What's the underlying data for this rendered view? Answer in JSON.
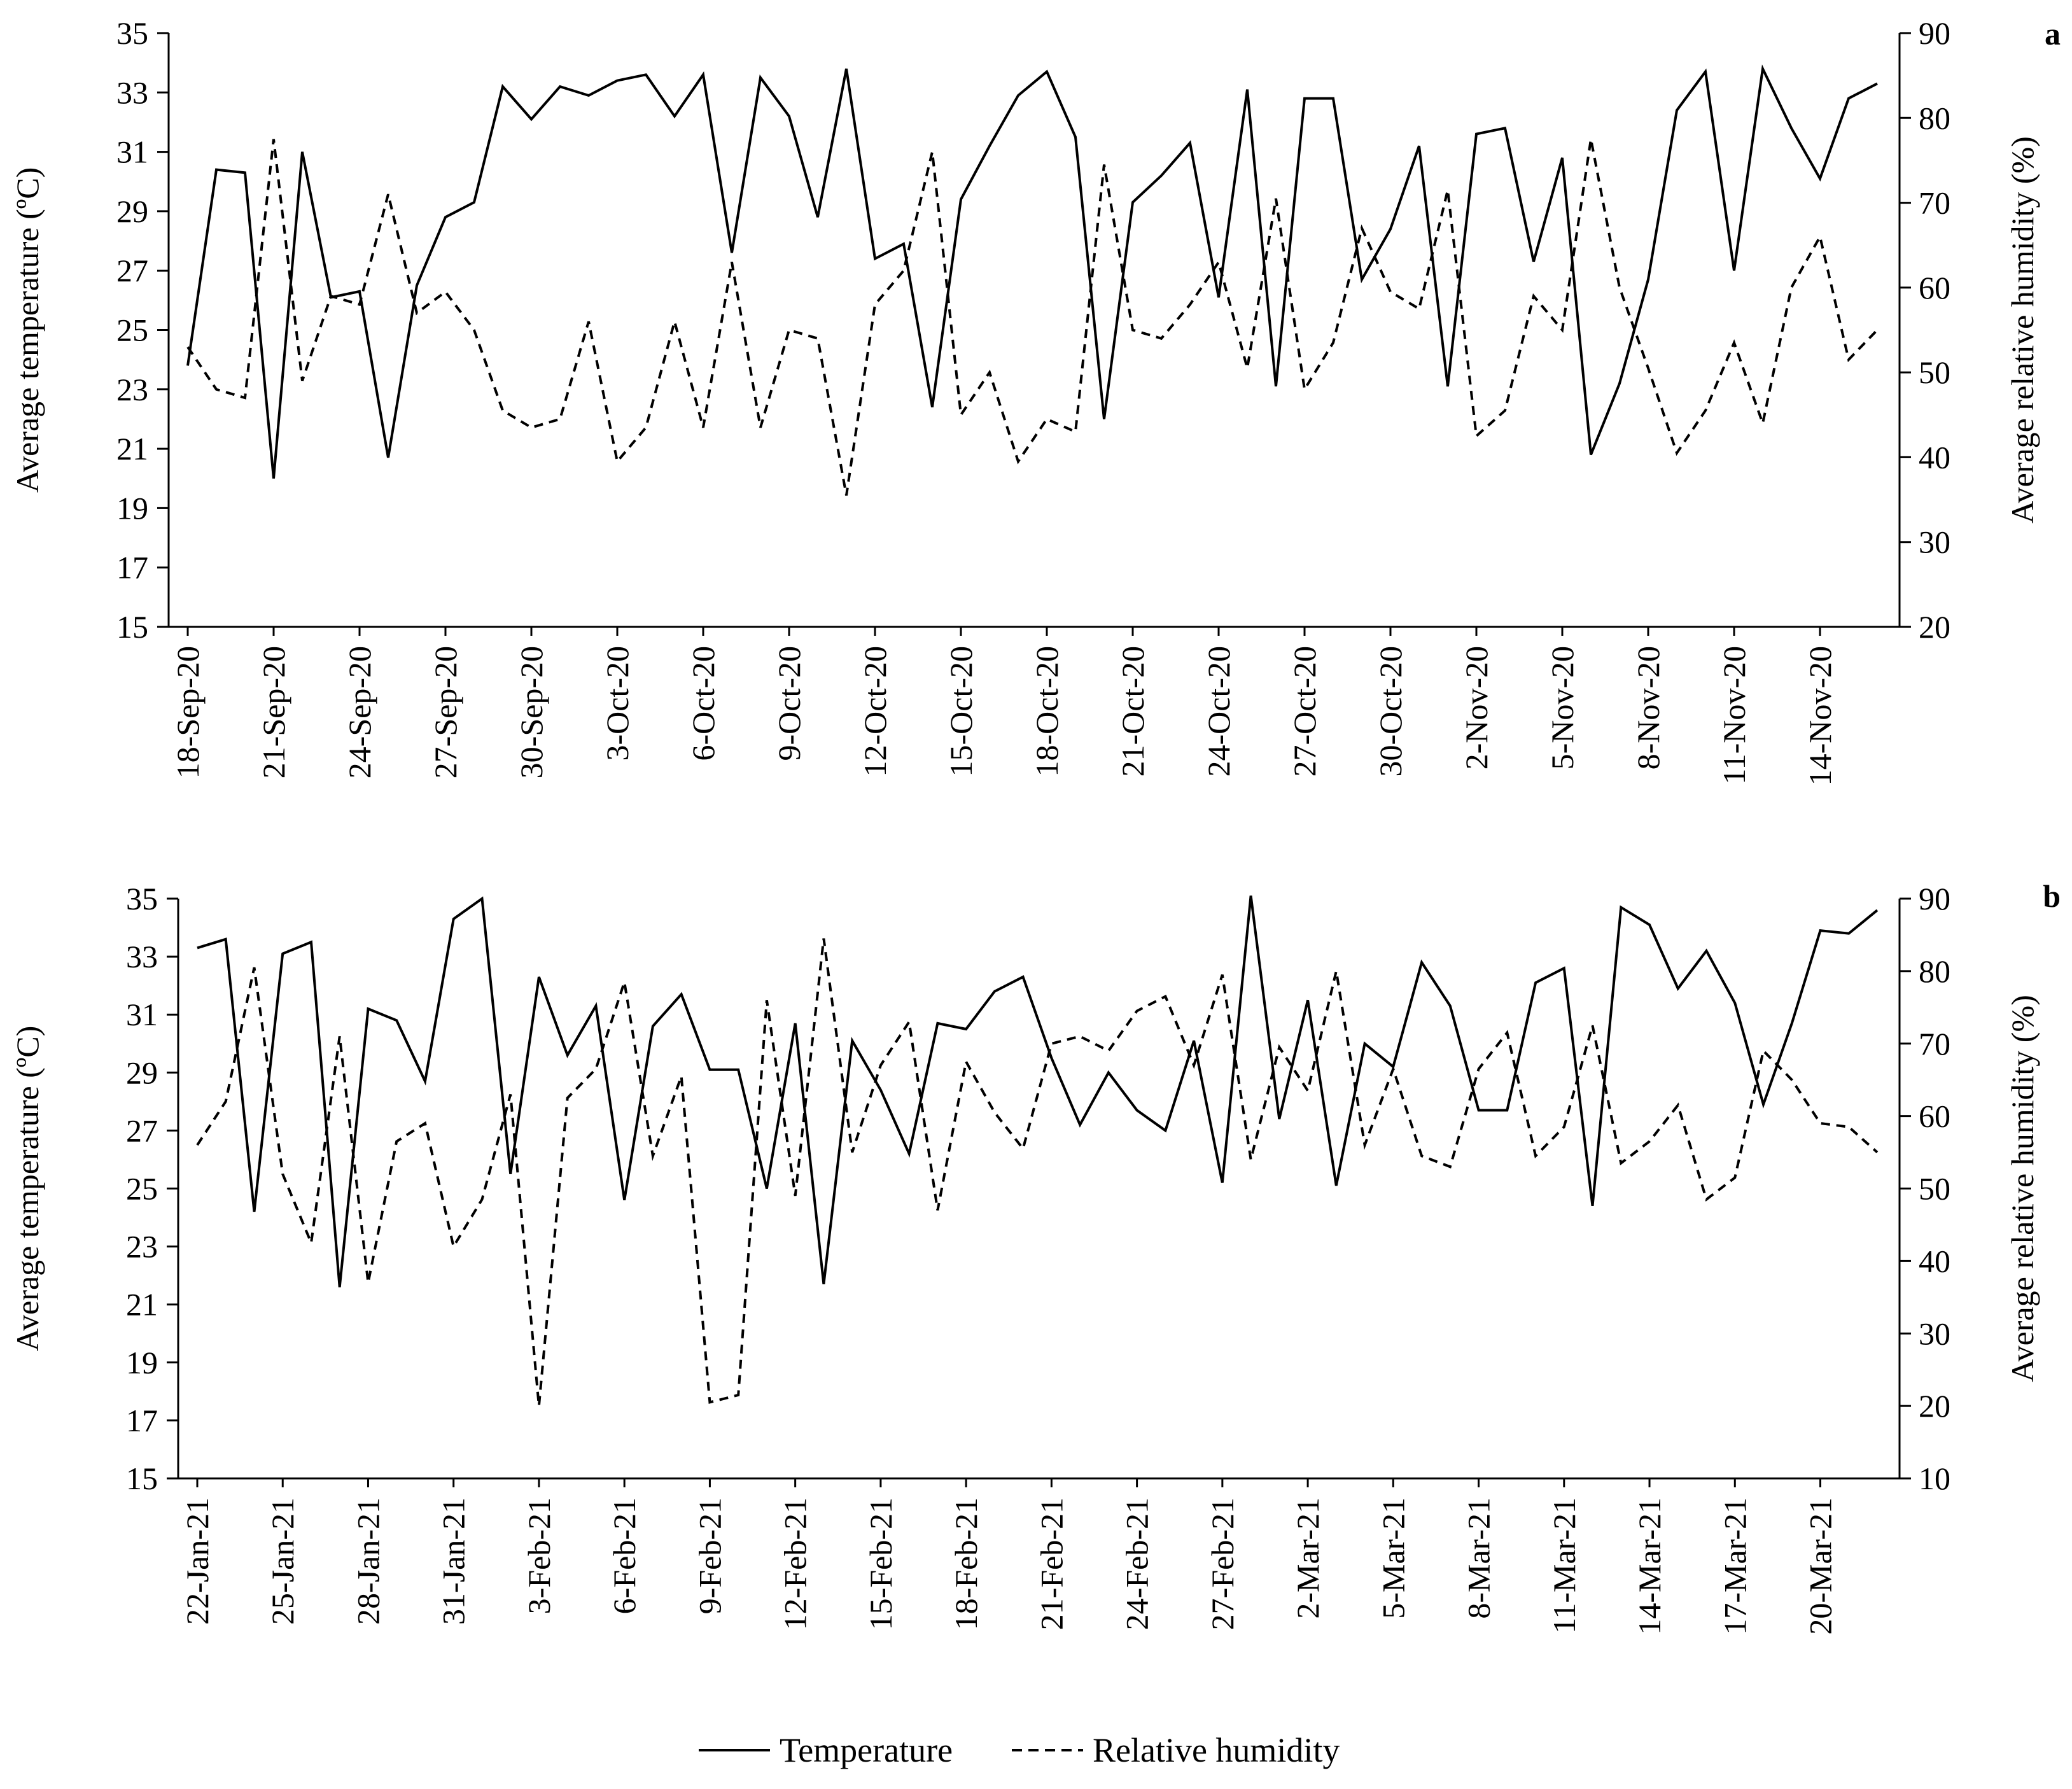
{
  "legend": {
    "temperature_label": "Temperature",
    "humidity_label": "Relative humidity"
  },
  "colors": {
    "line": "#000000",
    "background": "#ffffff"
  },
  "chart_data": [
    {
      "type": "line",
      "panel": "a",
      "ylabel": "Average temperature (ºC)",
      "y2label": "Average relative humidity (%)",
      "ylim": [
        15,
        35
      ],
      "y2lim": [
        20,
        90
      ],
      "yticks": [
        15,
        17,
        19,
        21,
        23,
        25,
        27,
        29,
        31,
        33,
        35
      ],
      "y2ticks": [
        20,
        30,
        40,
        50,
        60,
        70,
        80,
        90
      ],
      "x": [
        "18-Sep-20",
        "19-Sep-20",
        "20-Sep-20",
        "21-Sep-20",
        "22-Sep-20",
        "23-Sep-20",
        "24-Sep-20",
        "25-Sep-20",
        "26-Sep-20",
        "27-Sep-20",
        "28-Sep-20",
        "29-Sep-20",
        "30-Sep-20",
        "1-Oct-20",
        "2-Oct-20",
        "3-Oct-20",
        "4-Oct-20",
        "5-Oct-20",
        "6-Oct-20",
        "7-Oct-20",
        "8-Oct-20",
        "9-Oct-20",
        "10-Oct-20",
        "11-Oct-20",
        "12-Oct-20",
        "13-Oct-20",
        "14-Oct-20",
        "15-Oct-20",
        "16-Oct-20",
        "17-Oct-20",
        "18-Oct-20",
        "19-Oct-20",
        "20-Oct-20",
        "21-Oct-20",
        "22-Oct-20",
        "23-Oct-20",
        "24-Oct-20",
        "25-Oct-20",
        "26-Oct-20",
        "27-Oct-20",
        "28-Oct-20",
        "29-Oct-20",
        "30-Oct-20",
        "31-Oct-20",
        "1-Nov-20",
        "2-Nov-20",
        "3-Nov-20",
        "4-Nov-20",
        "5-Nov-20",
        "6-Nov-20",
        "7-Nov-20",
        "8-Nov-20",
        "9-Nov-20",
        "10-Nov-20",
        "11-Nov-20",
        "12-Nov-20",
        "13-Nov-20",
        "14-Nov-20",
        "15-Nov-20",
        "16-Nov-20"
      ],
      "xtick_labels": [
        "18-Sep-20",
        "21-Sep-20",
        "24-Sep-20",
        "27-Sep-20",
        "30-Sep-20",
        "3-Oct-20",
        "6-Oct-20",
        "9-Oct-20",
        "12-Oct-20",
        "15-Oct-20",
        "18-Oct-20",
        "21-Oct-20",
        "24-Oct-20",
        "27-Oct-20",
        "30-Oct-20",
        "2-Nov-20",
        "5-Nov-20",
        "8-Nov-20",
        "11-Nov-20",
        "14-Nov-20"
      ],
      "series": [
        {
          "name": "Temperature",
          "axis": "left",
          "style": "solid",
          "values": [
            23.8,
            30.4,
            30.3,
            20.0,
            31.0,
            26.1,
            26.3,
            20.7,
            26.5,
            28.8,
            29.3,
            33.2,
            32.1,
            33.2,
            32.9,
            33.4,
            33.6,
            32.2,
            33.6,
            27.6,
            33.5,
            32.2,
            28.8,
            33.8,
            27.4,
            27.9,
            22.4,
            29.4,
            31.2,
            32.9,
            33.7,
            31.5,
            22.0,
            29.3,
            30.2,
            31.3,
            26.1,
            33.1,
            23.1,
            32.8,
            32.8,
            26.7,
            28.4,
            31.2,
            23.1,
            31.6,
            31.8,
            27.3,
            30.8,
            20.8,
            23.2,
            26.7,
            32.4,
            33.7,
            27.0,
            33.8,
            31.8,
            30.1,
            32.8,
            33.3
          ]
        },
        {
          "name": "Relative humidity",
          "axis": "right",
          "style": "dashed",
          "values": [
            53.0,
            48.0,
            47.0,
            77.5,
            49.0,
            59.0,
            58.0,
            71.0,
            57.0,
            59.5,
            55.0,
            45.5,
            43.5,
            44.5,
            56.0,
            39.5,
            43.5,
            56.0,
            43.5,
            63.0,
            43.5,
            55.0,
            54.0,
            35.5,
            58.0,
            62.0,
            76.0,
            45.0,
            50.0,
            39.5,
            44.5,
            43.0,
            74.5,
            55.0,
            54.0,
            58.0,
            63.0,
            50.5,
            70.5,
            48.0,
            53.5,
            67.0,
            59.5,
            57.5,
            71.5,
            42.5,
            45.5,
            59.0,
            55.0,
            77.5,
            60.0,
            50.5,
            40.5,
            45.5,
            53.5,
            44.0,
            60.0,
            66.0,
            51.5,
            55.0
          ]
        }
      ]
    },
    {
      "type": "line",
      "panel": "b",
      "ylabel": "Average temperature (ºC)",
      "y2label": "Average relative humidity (%)",
      "ylim": [
        15,
        35
      ],
      "y2lim": [
        10,
        90
      ],
      "yticks": [
        15,
        17,
        19,
        21,
        23,
        25,
        27,
        29,
        31,
        33,
        35
      ],
      "y2ticks": [
        10,
        20,
        30,
        40,
        50,
        60,
        70,
        80,
        90
      ],
      "x": [
        "22-Jan-21",
        "23-Jan-21",
        "24-Jan-21",
        "25-Jan-21",
        "26-Jan-21",
        "27-Jan-21",
        "28-Jan-21",
        "29-Jan-21",
        "30-Jan-21",
        "31-Jan-21",
        "1-Feb-21",
        "2-Feb-21",
        "3-Feb-21",
        "4-Feb-21",
        "5-Feb-21",
        "6-Feb-21",
        "7-Feb-21",
        "8-Feb-21",
        "9-Feb-21",
        "10-Feb-21",
        "11-Feb-21",
        "12-Feb-21",
        "13-Feb-21",
        "14-Feb-21",
        "15-Feb-21",
        "16-Feb-21",
        "17-Feb-21",
        "18-Feb-21",
        "19-Feb-21",
        "20-Feb-21",
        "21-Feb-21",
        "22-Feb-21",
        "23-Feb-21",
        "24-Feb-21",
        "25-Feb-21",
        "26-Feb-21",
        "27-Feb-21",
        "28-Feb-21",
        "1-Mar-21",
        "2-Mar-21",
        "3-Mar-21",
        "4-Mar-21",
        "5-Mar-21",
        "6-Mar-21",
        "7-Mar-21",
        "8-Mar-21",
        "9-Mar-21",
        "10-Mar-21",
        "11-Mar-21",
        "12-Mar-21",
        "13-Mar-21",
        "14-Mar-21",
        "15-Mar-21",
        "16-Mar-21",
        "17-Mar-21",
        "18-Mar-21",
        "19-Mar-21",
        "20-Mar-21",
        "21-Mar-21",
        "22-Mar-21"
      ],
      "xtick_labels": [
        "22-Jan-21",
        "25-Jan-21",
        "28-Jan-21",
        "31-Jan-21",
        "3-Feb-21",
        "6-Feb-21",
        "9-Feb-21",
        "12-Feb-21",
        "15-Feb-21",
        "18-Feb-21",
        "21-Feb-21",
        "24-Feb-21",
        "27-Feb-21",
        "2-Mar-21",
        "5-Mar-21",
        "8-Mar-21",
        "11-Mar-21",
        "14-Mar-21",
        "17-Mar-21",
        "20-Mar-21"
      ],
      "series": [
        {
          "name": "Temperature",
          "axis": "left",
          "style": "solid",
          "values": [
            33.3,
            33.6,
            24.2,
            33.1,
            33.5,
            21.6,
            31.2,
            30.8,
            28.7,
            34.3,
            35.0,
            25.5,
            32.3,
            29.6,
            31.3,
            24.6,
            30.6,
            31.7,
            29.1,
            29.1,
            25.0,
            30.7,
            21.7,
            30.1,
            28.4,
            26.2,
            30.7,
            30.5,
            31.8,
            32.3,
            29.5,
            27.2,
            29.0,
            27.7,
            27.0,
            30.1,
            25.2,
            35.1,
            27.4,
            31.5,
            25.1,
            30.0,
            29.2,
            32.8,
            31.3,
            27.7,
            27.7,
            32.1,
            32.6,
            24.4,
            34.7,
            34.1,
            31.9,
            33.2,
            31.4,
            27.9,
            30.7,
            33.9,
            33.8,
            34.6
          ]
        },
        {
          "name": "Relative humidity",
          "axis": "right",
          "style": "dashed",
          "values": [
            56.0,
            62.0,
            80.5,
            52.0,
            42.5,
            71.0,
            37.0,
            56.5,
            59.0,
            42.0,
            48.5,
            63.0,
            20.0,
            62.5,
            66.5,
            78.5,
            54.5,
            65.5,
            20.5,
            21.5,
            76.0,
            49.0,
            84.5,
            55.0,
            67.0,
            73.0,
            47.0,
            67.5,
            60.5,
            55.5,
            70.0,
            71.0,
            69.0,
            74.5,
            76.5,
            67.0,
            79.5,
            54.0,
            69.5,
            63.5,
            80.0,
            56.0,
            66.5,
            54.5,
            53.0,
            66.5,
            71.5,
            54.5,
            58.5,
            72.5,
            53.5,
            56.5,
            61.5,
            48.5,
            51.5,
            69.0,
            65.0,
            59.0,
            58.5,
            55.0
          ]
        }
      ]
    }
  ]
}
